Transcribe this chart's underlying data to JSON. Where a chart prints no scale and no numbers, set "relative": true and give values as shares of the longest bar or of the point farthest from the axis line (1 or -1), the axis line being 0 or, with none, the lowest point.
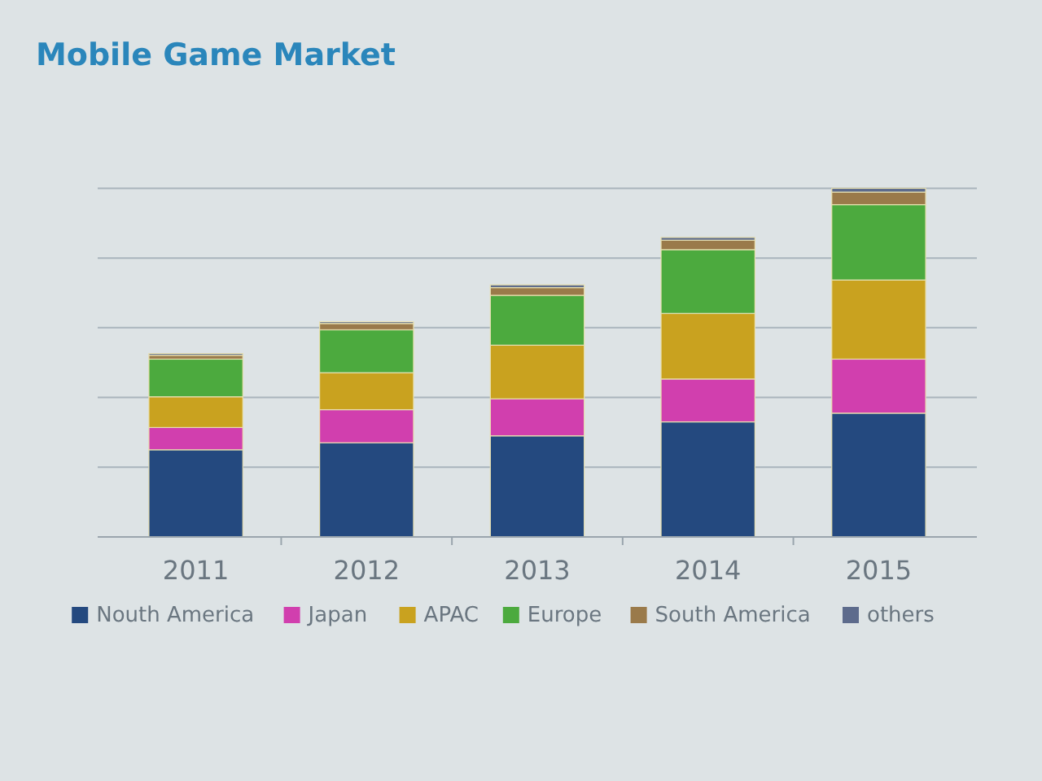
{
  "chart_data": {
    "type": "bar",
    "title": "Mobile Game Market",
    "relative": true,
    "stacked": true,
    "grid": "y",
    "legend": "bottom",
    "categories": [
      "2011",
      "2012",
      "2013",
      "2014",
      "2015"
    ],
    "series": [
      {
        "name": "Nouth America",
        "color": "#24497f",
        "values": [
          0.25,
          0.27,
          0.29,
          0.33,
          0.355
        ]
      },
      {
        "name": "Japan",
        "color": "#d13fae",
        "values": [
          0.064,
          0.095,
          0.106,
          0.123,
          0.155
        ]
      },
      {
        "name": "APAC",
        "color": "#c9a21f",
        "values": [
          0.088,
          0.106,
          0.154,
          0.188,
          0.227
        ]
      },
      {
        "name": "Europe",
        "color": "#4caa3e",
        "values": [
          0.108,
          0.123,
          0.143,
          0.183,
          0.216
        ]
      },
      {
        "name": "South America",
        "color": "#9a7a4a",
        "values": [
          0.011,
          0.018,
          0.022,
          0.027,
          0.036
        ]
      },
      {
        "name": "others",
        "color": "#5d6b8c",
        "values": [
          0.005,
          0.005,
          0.008,
          0.008,
          0.011
        ]
      }
    ]
  }
}
